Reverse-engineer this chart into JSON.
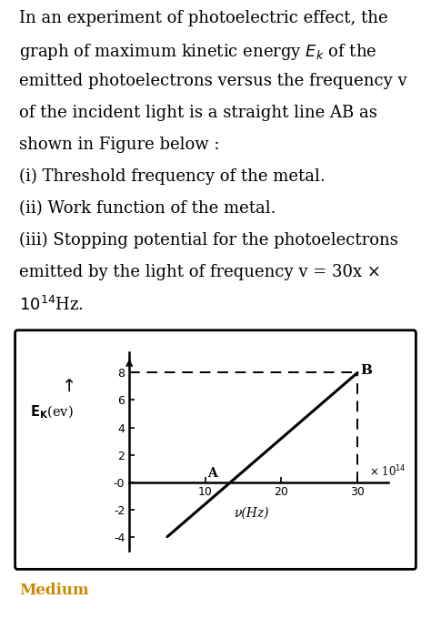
{
  "line_x": [
    5,
    30
  ],
  "line_y": [
    -4,
    8
  ],
  "point_A": [
    10,
    0
  ],
  "point_B": [
    30,
    8
  ],
  "dashed_horiz_y": 8,
  "dashed_vert_x": 30,
  "xlim": [
    0,
    34
  ],
  "ylim": [
    -5,
    9.5
  ],
  "xticks": [
    10,
    20,
    30
  ],
  "yticks": [
    -4,
    -2,
    0,
    2,
    4,
    6,
    8
  ],
  "ytick_labels": [
    "-4",
    "-2",
    "-0",
    "2",
    "4",
    "6",
    "8"
  ],
  "xtick_labels": [
    "10",
    "20",
    "30"
  ],
  "xlabel": "ν(Hz)",
  "label_A": "A",
  "label_B": "B",
  "bg_color": "#d8d8d8",
  "plot_bg": "#ffffff",
  "medium_label": "Medium",
  "medium_color": "#cc8800",
  "text_lines": [
    "In an experiment of photoelectric effect, the",
    "graph of maximum kinetic energy E_k of the",
    "emitted photoelectrons versus the frequency v",
    "of the incident light is a straight line AB as",
    "shown in Figure below :",
    "(i) Threshold frequency of the metal.",
    "(ii) Work function of the metal.",
    "(iii) Stopping potential for the photoelectrons",
    "emitted by the light of frequency v = 30x ×",
    "10¹⁴Hz."
  ]
}
